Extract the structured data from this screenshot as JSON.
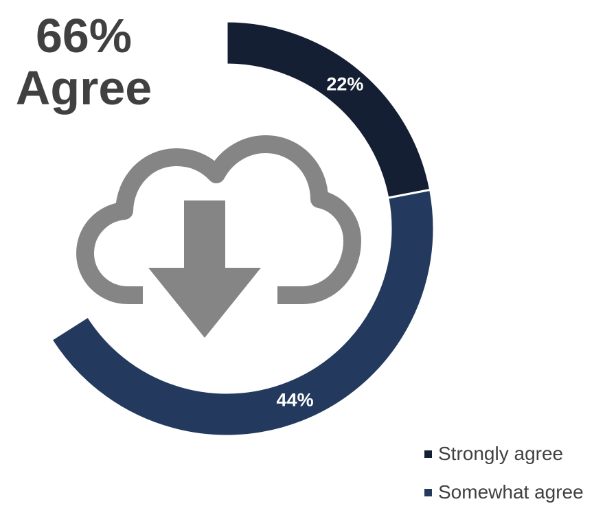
{
  "headline": {
    "value": "66%",
    "label": "Agree"
  },
  "center_icon": "cloud-download-icon",
  "colors": {
    "strongly_agree": "#141f33",
    "somewhat_agree": "#233a5e",
    "icon": "#858585",
    "text": "#404040"
  },
  "chart_data": {
    "type": "pie",
    "style": "donut",
    "start_angle_deg": 0,
    "direction": "clockwise",
    "categories": [
      "Strongly agree",
      "Somewhat agree"
    ],
    "values": [
      22,
      44
    ],
    "data_labels": [
      "22%",
      "44%"
    ],
    "colors": [
      "#141f33",
      "#233a5e"
    ],
    "legend_position": "bottom-right",
    "remainder_blank": true
  },
  "legend": [
    {
      "label": "Strongly agree",
      "color": "#141f33"
    },
    {
      "label": "Somewhat agree",
      "color": "#233a5e"
    }
  ]
}
